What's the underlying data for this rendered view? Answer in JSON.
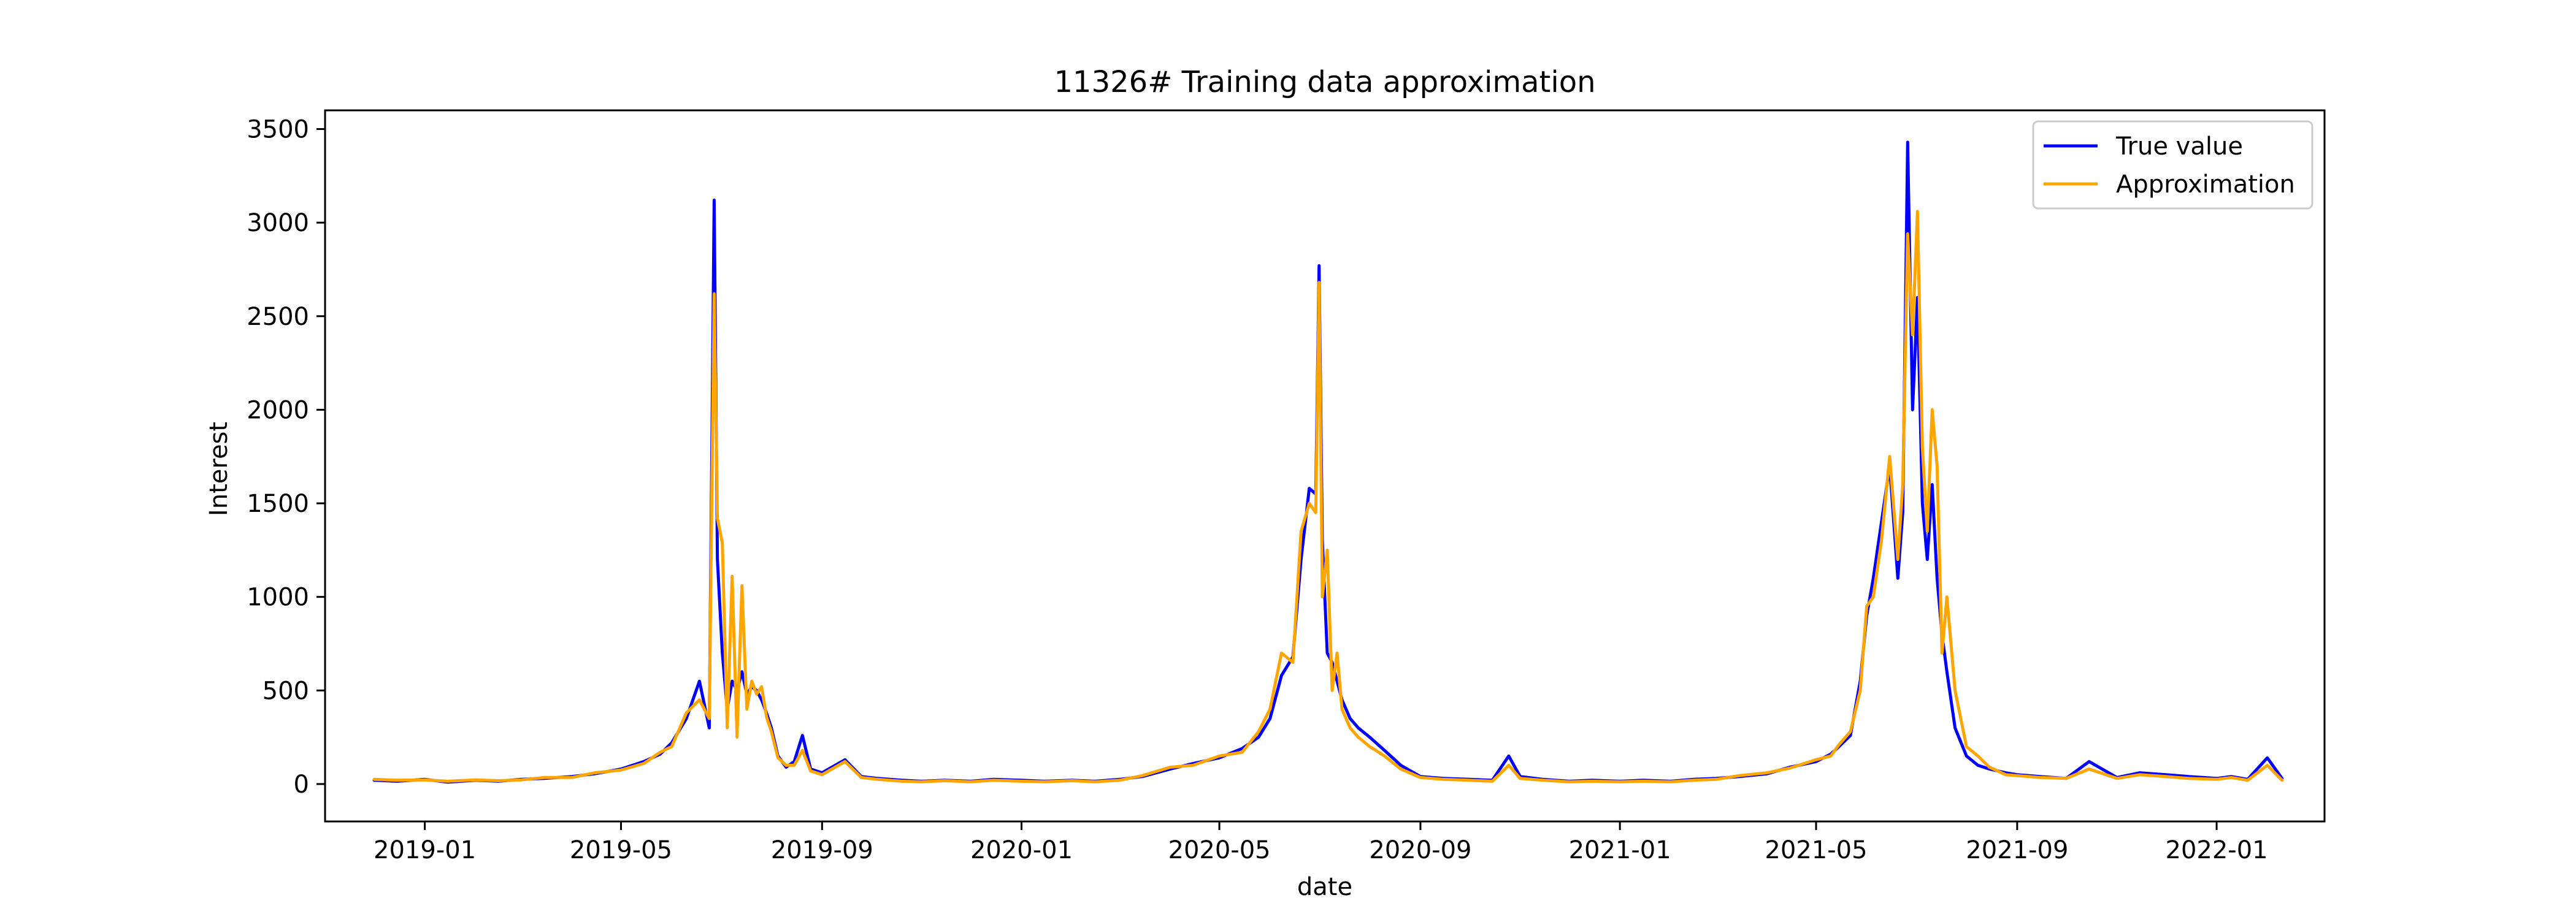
{
  "chart_data": {
    "type": "line",
    "title": "11326# Training data approximation",
    "xlabel": "date",
    "ylabel": "Interest",
    "xlim": [
      "2018-11-01",
      "2022-03-08"
    ],
    "ylim": [
      -200,
      3600
    ],
    "xticks": [
      "2019-01",
      "2019-05",
      "2019-09",
      "2020-01",
      "2020-05",
      "2020-09",
      "2021-01",
      "2021-05",
      "2021-09",
      "2022-01"
    ],
    "xtick_dates": [
      "2019-01-01",
      "2019-05-01",
      "2019-09-01",
      "2020-01-01",
      "2020-05-01",
      "2020-09-01",
      "2021-01-01",
      "2021-05-01",
      "2021-09-01",
      "2022-01-01"
    ],
    "yticks": [
      "0",
      "500",
      "1000",
      "1500",
      "2000",
      "2500",
      "3000",
      "3500"
    ],
    "grid": false,
    "legend_position": "upper right",
    "x": [
      "2018-12-01",
      "2018-12-15",
      "2019-01-01",
      "2019-01-15",
      "2019-02-01",
      "2019-02-15",
      "2019-03-01",
      "2019-03-15",
      "2019-04-01",
      "2019-04-15",
      "2019-05-01",
      "2019-05-15",
      "2019-05-25",
      "2019-06-01",
      "2019-06-10",
      "2019-06-18",
      "2019-06-24",
      "2019-06-27",
      "2019-06-29",
      "2019-07-02",
      "2019-07-05",
      "2019-07-08",
      "2019-07-11",
      "2019-07-14",
      "2019-07-17",
      "2019-07-20",
      "2019-07-23",
      "2019-07-26",
      "2019-07-29",
      "2019-08-01",
      "2019-08-05",
      "2019-08-10",
      "2019-08-15",
      "2019-08-20",
      "2019-08-25",
      "2019-09-01",
      "2019-09-15",
      "2019-09-25",
      "2019-10-05",
      "2019-10-20",
      "2019-11-01",
      "2019-11-15",
      "2019-12-01",
      "2019-12-15",
      "2020-01-01",
      "2020-01-15",
      "2020-02-01",
      "2020-02-15",
      "2020-03-01",
      "2020-03-15",
      "2020-04-01",
      "2020-04-15",
      "2020-05-01",
      "2020-05-15",
      "2020-05-25",
      "2020-06-01",
      "2020-06-08",
      "2020-06-15",
      "2020-06-20",
      "2020-06-25",
      "2020-06-29",
      "2020-07-01",
      "2020-07-03",
      "2020-07-06",
      "2020-07-09",
      "2020-07-12",
      "2020-07-15",
      "2020-07-20",
      "2020-07-25",
      "2020-08-01",
      "2020-08-10",
      "2020-08-20",
      "2020-09-01",
      "2020-09-15",
      "2020-10-01",
      "2020-10-15",
      "2020-10-25",
      "2020-11-01",
      "2020-11-15",
      "2020-12-01",
      "2020-12-15",
      "2021-01-01",
      "2021-01-15",
      "2021-02-01",
      "2021-02-15",
      "2021-03-01",
      "2021-03-15",
      "2021-04-01",
      "2021-04-15",
      "2021-05-01",
      "2021-05-10",
      "2021-05-15",
      "2021-05-22",
      "2021-05-28",
      "2021-06-01",
      "2021-06-05",
      "2021-06-10",
      "2021-06-15",
      "2021-06-20",
      "2021-06-23",
      "2021-06-26",
      "2021-06-29",
      "2021-07-02",
      "2021-07-05",
      "2021-07-08",
      "2021-07-11",
      "2021-07-14",
      "2021-07-17",
      "2021-07-20",
      "2021-07-25",
      "2021-08-01",
      "2021-08-08",
      "2021-08-15",
      "2021-08-25",
      "2021-09-01",
      "2021-09-15",
      "2021-10-01",
      "2021-10-15",
      "2021-11-01",
      "2021-11-15",
      "2021-12-01",
      "2021-12-15",
      "2022-01-01",
      "2022-01-10",
      "2022-01-20",
      "2022-02-01",
      "2022-02-10"
    ],
    "series": [
      {
        "name": "True value",
        "color": "#0000ff",
        "values": [
          20,
          15,
          25,
          10,
          20,
          15,
          25,
          30,
          40,
          55,
          80,
          120,
          160,
          220,
          350,
          550,
          300,
          3120,
          1200,
          700,
          400,
          550,
          500,
          600,
          480,
          520,
          500,
          450,
          380,
          300,
          150,
          90,
          120,
          260,
          80,
          60,
          130,
          40,
          30,
          20,
          15,
          20,
          15,
          25,
          20,
          15,
          20,
          15,
          25,
          40,
          80,
          110,
          140,
          190,
          250,
          350,
          580,
          680,
          1200,
          1580,
          1550,
          2770,
          1300,
          700,
          650,
          550,
          450,
          350,
          300,
          250,
          180,
          100,
          40,
          30,
          25,
          20,
          150,
          40,
          25,
          15,
          20,
          15,
          20,
          15,
          25,
          30,
          40,
          55,
          90,
          120,
          160,
          200,
          260,
          550,
          900,
          1100,
          1400,
          1700,
          1100,
          1450,
          3430,
          2000,
          2600,
          1500,
          1200,
          1600,
          1100,
          800,
          600,
          300,
          150,
          100,
          80,
          60,
          50,
          40,
          30,
          120,
          35,
          60,
          50,
          40,
          30,
          40,
          25,
          140,
          30
        ]
      },
      {
        "name": "Approximation",
        "color": "#ffa500",
        "values": [
          25,
          20,
          22,
          15,
          22,
          18,
          22,
          35,
          35,
          60,
          75,
          110,
          170,
          200,
          380,
          450,
          350,
          2620,
          1420,
          1290,
          300,
          1110,
          250,
          1060,
          400,
          550,
          480,
          520,
          360,
          280,
          140,
          100,
          100,
          180,
          70,
          50,
          120,
          35,
          25,
          15,
          12,
          18,
          12,
          20,
          15,
          12,
          18,
          12,
          20,
          45,
          90,
          100,
          150,
          170,
          280,
          400,
          700,
          650,
          1350,
          1500,
          1450,
          2680,
          1000,
          1250,
          500,
          700,
          400,
          300,
          250,
          200,
          150,
          80,
          35,
          25,
          20,
          15,
          100,
          30,
          20,
          12,
          15,
          12,
          15,
          12,
          20,
          25,
          45,
          60,
          85,
          130,
          150,
          210,
          280,
          500,
          950,
          1000,
          1300,
          1750,
          1200,
          1600,
          2940,
          2400,
          3060,
          1800,
          1350,
          2000,
          1700,
          700,
          1000,
          500,
          200,
          150,
          90,
          50,
          45,
          35,
          30,
          80,
          30,
          50,
          40,
          30,
          25,
          35,
          20,
          100,
          20
        ]
      }
    ]
  }
}
